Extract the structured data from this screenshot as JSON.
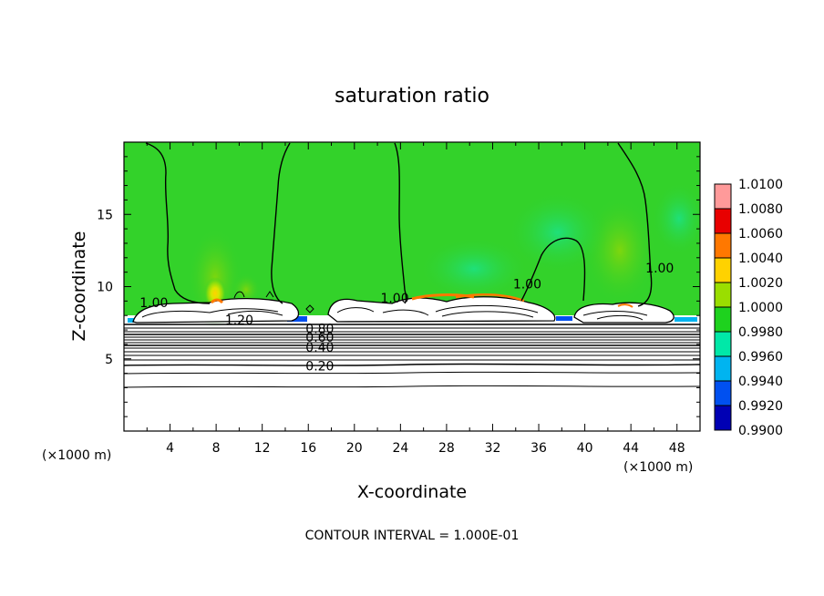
{
  "chart_data": {
    "type": "heatmap",
    "title": "saturation ratio",
    "xlabel": "X-coordinate",
    "ylabel": "Z-coordinate",
    "x_unit": "(×1000 m)",
    "y_unit": "(×1000 m)",
    "xlim": [
      0,
      50
    ],
    "ylim": [
      0,
      20
    ],
    "x_ticks": [
      "4",
      "8",
      "12",
      "16",
      "20",
      "24",
      "28",
      "32",
      "36",
      "40",
      "44",
      "48"
    ],
    "y_ticks": [
      "5",
      "10",
      "15"
    ],
    "footer": "CONTOUR INTERVAL = 1.000E-01",
    "colorbar": {
      "levels": [
        "1.0100",
        "1.0080",
        "1.0060",
        "1.0040",
        "1.0020",
        "1.0000",
        "0.9980",
        "0.9960",
        "0.9940",
        "0.9920",
        "0.9900"
      ],
      "colors": [
        "#ff9a9a",
        "#e80000",
        "#ff7800",
        "#ffd200",
        "#9ade00",
        "#1ed21e",
        "#00e8a8",
        "#00b4f0",
        "#0050f0",
        "#0000b4",
        "#7a00a0"
      ]
    },
    "contour_labels": [
      {
        "text": "1.00",
        "x": 2.6,
        "z": 8.9
      },
      {
        "text": "1.20",
        "x": 10.0,
        "z": 7.7
      },
      {
        "text": "0.80",
        "x": 17.0,
        "z": 7.1
      },
      {
        "text": "0.60",
        "x": 17.0,
        "z": 6.5
      },
      {
        "text": "0.40",
        "x": 17.0,
        "z": 5.8
      },
      {
        "text": "0.20",
        "x": 17.0,
        "z": 4.5
      },
      {
        "text": "1.00",
        "x": 23.5,
        "z": 9.2
      },
      {
        "text": "1.00",
        "x": 35.0,
        "z": 10.2
      },
      {
        "text": "1.00",
        "x": 46.5,
        "z": 11.3
      }
    ],
    "contour_levels": [
      {
        "value": 0.2,
        "z": 4.5
      },
      {
        "value": 0.4,
        "z": 5.9
      },
      {
        "value": 0.6,
        "z": 6.6
      },
      {
        "value": 0.8,
        "z": 7.2
      },
      {
        "value": 1.2,
        "z": 7.9
      }
    ]
  }
}
